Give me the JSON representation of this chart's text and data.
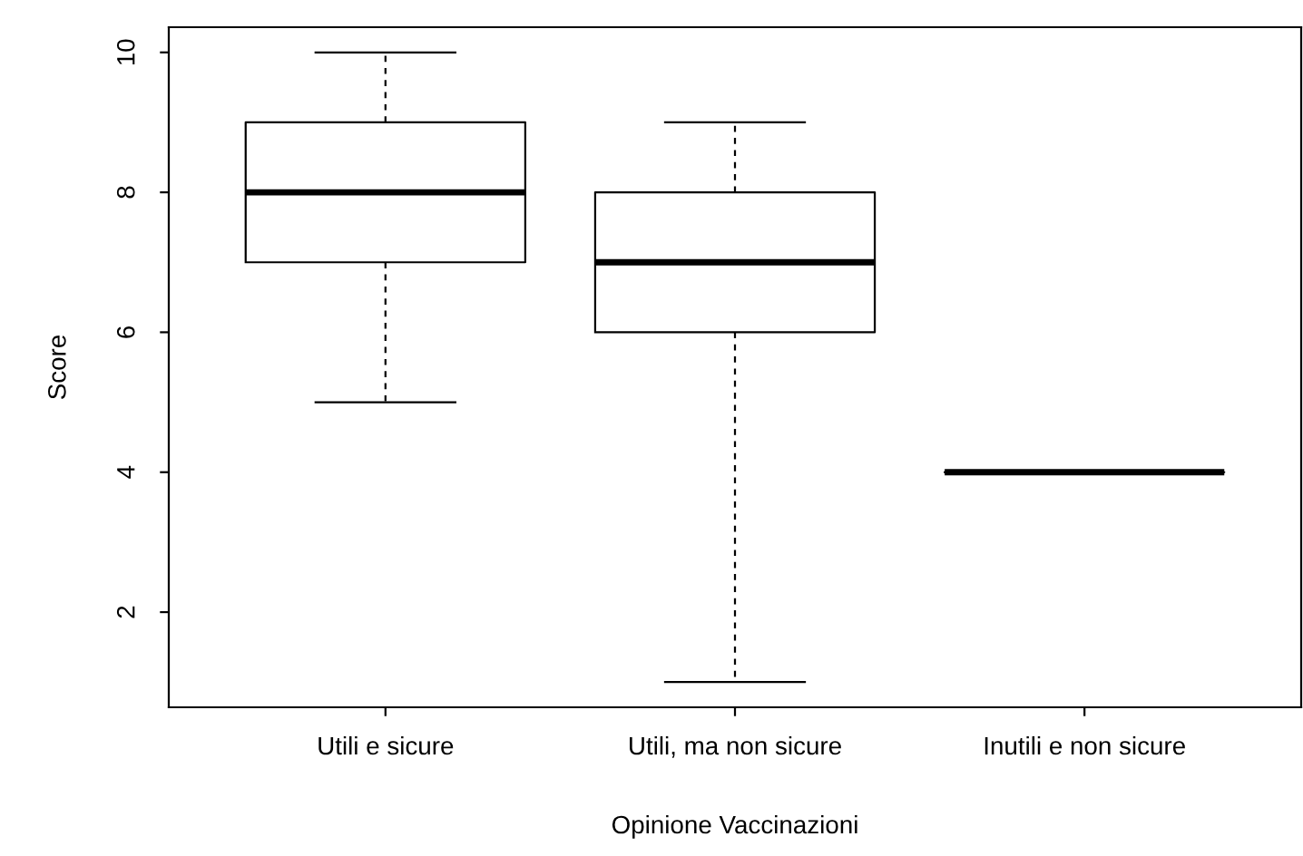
{
  "chart_data": {
    "type": "box",
    "xlabel": "Opinione Vaccinazioni",
    "ylabel": "Score",
    "categories": [
      "Utili e sicure",
      "Utili, ma non sicure",
      "Inutili e non sicure"
    ],
    "boxes": [
      {
        "low": 5,
        "q1": 7,
        "median": 8,
        "q3": 9,
        "high": 10
      },
      {
        "low": 1,
        "q1": 6,
        "median": 7,
        "q3": 8,
        "high": 9
      },
      {
        "low": 4,
        "q1": 4,
        "median": 4,
        "q3": 4,
        "high": 4
      }
    ],
    "ylim": [
      0.64,
      10.36
    ],
    "yticks": [
      2,
      4,
      6,
      8,
      10
    ],
    "grid": false
  }
}
